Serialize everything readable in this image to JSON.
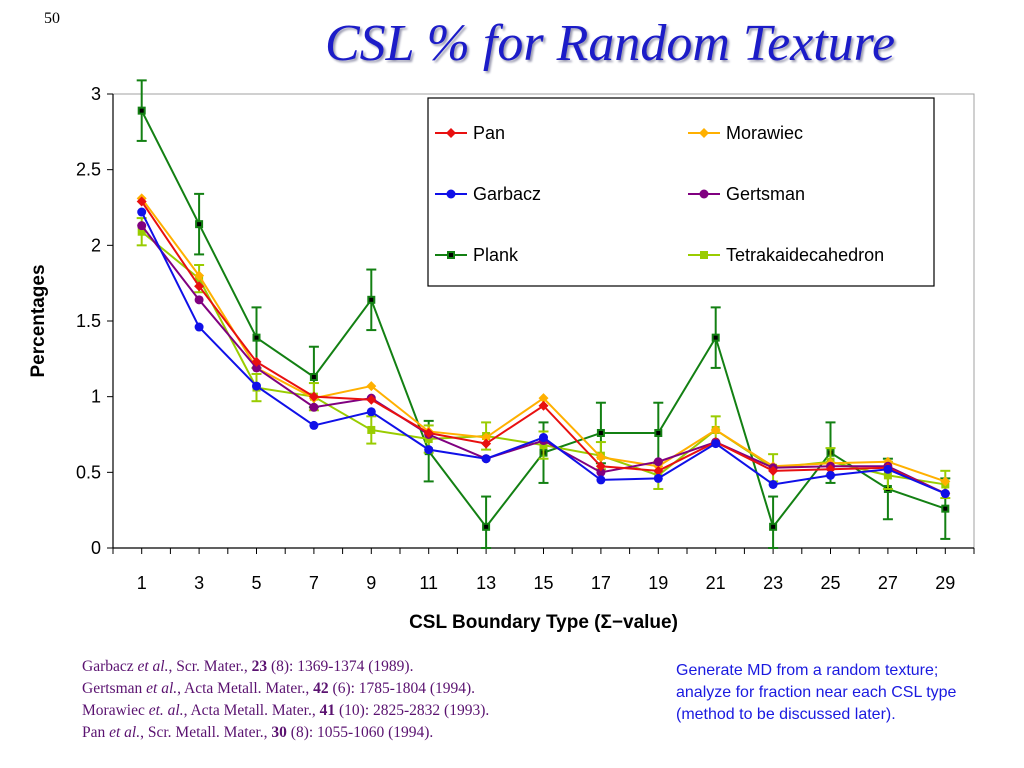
{
  "slide": {
    "number": "50",
    "title": "CSL % for Random Texture"
  },
  "chart_data": {
    "type": "line",
    "ylabel": "Percentages",
    "xlabel": "CSL Boundary Type (Σ−value)",
    "x": [
      1,
      3,
      5,
      7,
      9,
      11,
      13,
      15,
      17,
      19,
      21,
      23,
      25,
      27,
      29
    ],
    "x_ticks": [
      "1",
      "3",
      "5",
      "7",
      "9",
      "11",
      "13",
      "15",
      "17",
      "19",
      "21",
      "23",
      "25",
      "27",
      "29"
    ],
    "ylim": [
      0,
      3
    ],
    "y_ticks": [
      "0",
      "0.5",
      "1",
      "1.5",
      "2",
      "2.5",
      "3"
    ],
    "grid": false,
    "legend_position": "top-right",
    "series": [
      {
        "name": "Pan",
        "color": "#e81010",
        "marker": "diamond",
        "values": [
          2.29,
          1.73,
          1.23,
          1.0,
          0.98,
          0.76,
          0.69,
          0.94,
          0.54,
          0.51,
          0.7,
          0.51,
          0.52,
          0.53,
          0.36
        ]
      },
      {
        "name": "Morawiec",
        "color": "#ffb000",
        "marker": "diamond",
        "values": [
          2.31,
          1.8,
          1.19,
          0.99,
          1.07,
          0.77,
          0.73,
          0.99,
          0.6,
          0.54,
          0.78,
          0.54,
          0.56,
          0.57,
          0.44
        ]
      },
      {
        "name": "Garbacz",
        "color": "#1010e8",
        "marker": "circle",
        "values": [
          2.22,
          1.46,
          1.07,
          0.81,
          0.9,
          0.65,
          0.59,
          0.73,
          0.45,
          0.46,
          0.69,
          0.42,
          0.48,
          0.52,
          0.36
        ]
      },
      {
        "name": "Gertsman",
        "color": "#800080",
        "marker": "circle",
        "values": [
          2.13,
          1.64,
          1.19,
          0.93,
          0.99,
          0.75,
          0.59,
          0.71,
          0.5,
          0.57,
          0.7,
          0.53,
          0.54,
          0.54,
          0.36
        ]
      },
      {
        "name": "Plank",
        "color": "#138013",
        "marker": "square",
        "error": 0.2,
        "values": [
          2.89,
          2.14,
          1.39,
          1.13,
          1.64,
          0.64,
          0.14,
          0.63,
          0.76,
          0.76,
          1.39,
          0.14,
          0.63,
          0.39,
          0.26
        ]
      },
      {
        "name": "Tetrakaidecahedron",
        "color": "#99cc00",
        "marker": "square",
        "error": 0.09,
        "values": [
          2.09,
          1.78,
          1.06,
          1.0,
          0.78,
          0.72,
          0.74,
          0.68,
          0.61,
          0.48,
          0.78,
          0.53,
          0.57,
          0.48,
          0.42
        ]
      }
    ]
  },
  "references": [
    {
      "author": "Garbacz",
      "etal": "et al.",
      "journal": ", Scr. Mater., ",
      "vol": "23",
      "rest": " (8): 1369-1374 (1989)."
    },
    {
      "author": "Gertsman",
      "etal": "et al.",
      "journal": ", Acta Metall. Mater., ",
      "vol": "42",
      "rest": " (6): 1785-1804 (1994)."
    },
    {
      "author": "Morawiec",
      "etal": "et. al.",
      "journal": ", Acta Metall. Mater., ",
      "vol": "41",
      "rest": " (10): 2825-2832 (1993)."
    },
    {
      "author": "Pan",
      "etal": "et al.",
      "journal": ", Scr. Metall. Mater., ",
      "vol": "30",
      "rest": " (8): 1055-1060 (1994)."
    }
  ],
  "note": "Generate MD from a random texture; analyze for fraction near each CSL type (method to be discussed later)."
}
